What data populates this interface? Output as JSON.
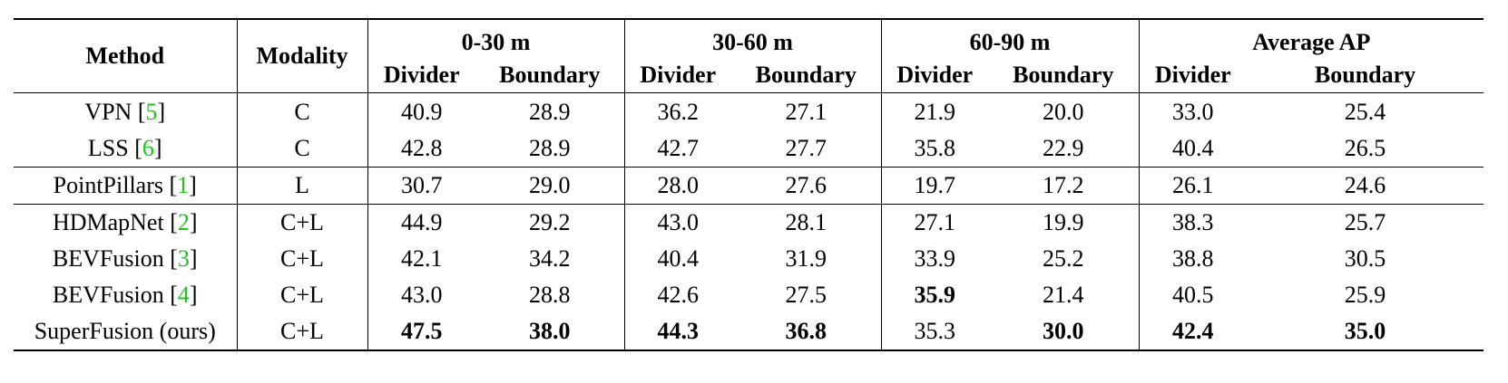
{
  "table": {
    "header": {
      "method": "Method",
      "modality": "Modality",
      "groups": [
        "0-30 m",
        "30-60 m",
        "60-90 m",
        "Average AP"
      ],
      "sub": [
        "Divider",
        "Boundary"
      ]
    },
    "groups_of_rows": [
      [
        {
          "method": "VPN",
          "cite": "5",
          "modality": "C",
          "values": [
            "40.9",
            "28.9",
            "36.2",
            "27.1",
            "21.9",
            "20.0",
            "33.0",
            "25.4"
          ],
          "bold": [
            false,
            false,
            false,
            false,
            false,
            false,
            false,
            false
          ]
        },
        {
          "method": "LSS",
          "cite": "6",
          "modality": "C",
          "values": [
            "42.8",
            "28.9",
            "42.7",
            "27.7",
            "35.8",
            "22.9",
            "40.4",
            "26.5"
          ],
          "bold": [
            false,
            false,
            false,
            false,
            false,
            false,
            false,
            false
          ]
        }
      ],
      [
        {
          "method": "PointPillars",
          "cite": "1",
          "modality": "L",
          "values": [
            "30.7",
            "29.0",
            "28.0",
            "27.6",
            "19.7",
            "17.2",
            "26.1",
            "24.6"
          ],
          "bold": [
            false,
            false,
            false,
            false,
            false,
            false,
            false,
            false
          ]
        }
      ],
      [
        {
          "method": "HDMapNet",
          "cite": "2",
          "modality": "C+L",
          "values": [
            "44.9",
            "29.2",
            "43.0",
            "28.1",
            "27.1",
            "19.9",
            "38.3",
            "25.7"
          ],
          "bold": [
            false,
            false,
            false,
            false,
            false,
            false,
            false,
            false
          ]
        },
        {
          "method": "BEVFusion",
          "cite": "3",
          "modality": "C+L",
          "values": [
            "42.1",
            "34.2",
            "40.4",
            "31.9",
            "33.9",
            "25.2",
            "38.8",
            "30.5"
          ],
          "bold": [
            false,
            false,
            false,
            false,
            false,
            false,
            false,
            false
          ]
        },
        {
          "method": "BEVFusion",
          "cite": "4",
          "modality": "C+L",
          "values": [
            "43.0",
            "28.8",
            "42.6",
            "27.5",
            "35.9",
            "21.4",
            "40.5",
            "25.9"
          ],
          "bold": [
            false,
            false,
            false,
            false,
            true,
            false,
            false,
            false
          ]
        },
        {
          "method": "SuperFusion (ours)",
          "cite": "",
          "modality": "C+L",
          "values": [
            "47.5",
            "38.0",
            "44.3",
            "36.8",
            "35.3",
            "30.0",
            "42.4",
            "35.0"
          ],
          "bold": [
            true,
            true,
            true,
            true,
            false,
            true,
            true,
            true
          ]
        }
      ]
    ]
  }
}
